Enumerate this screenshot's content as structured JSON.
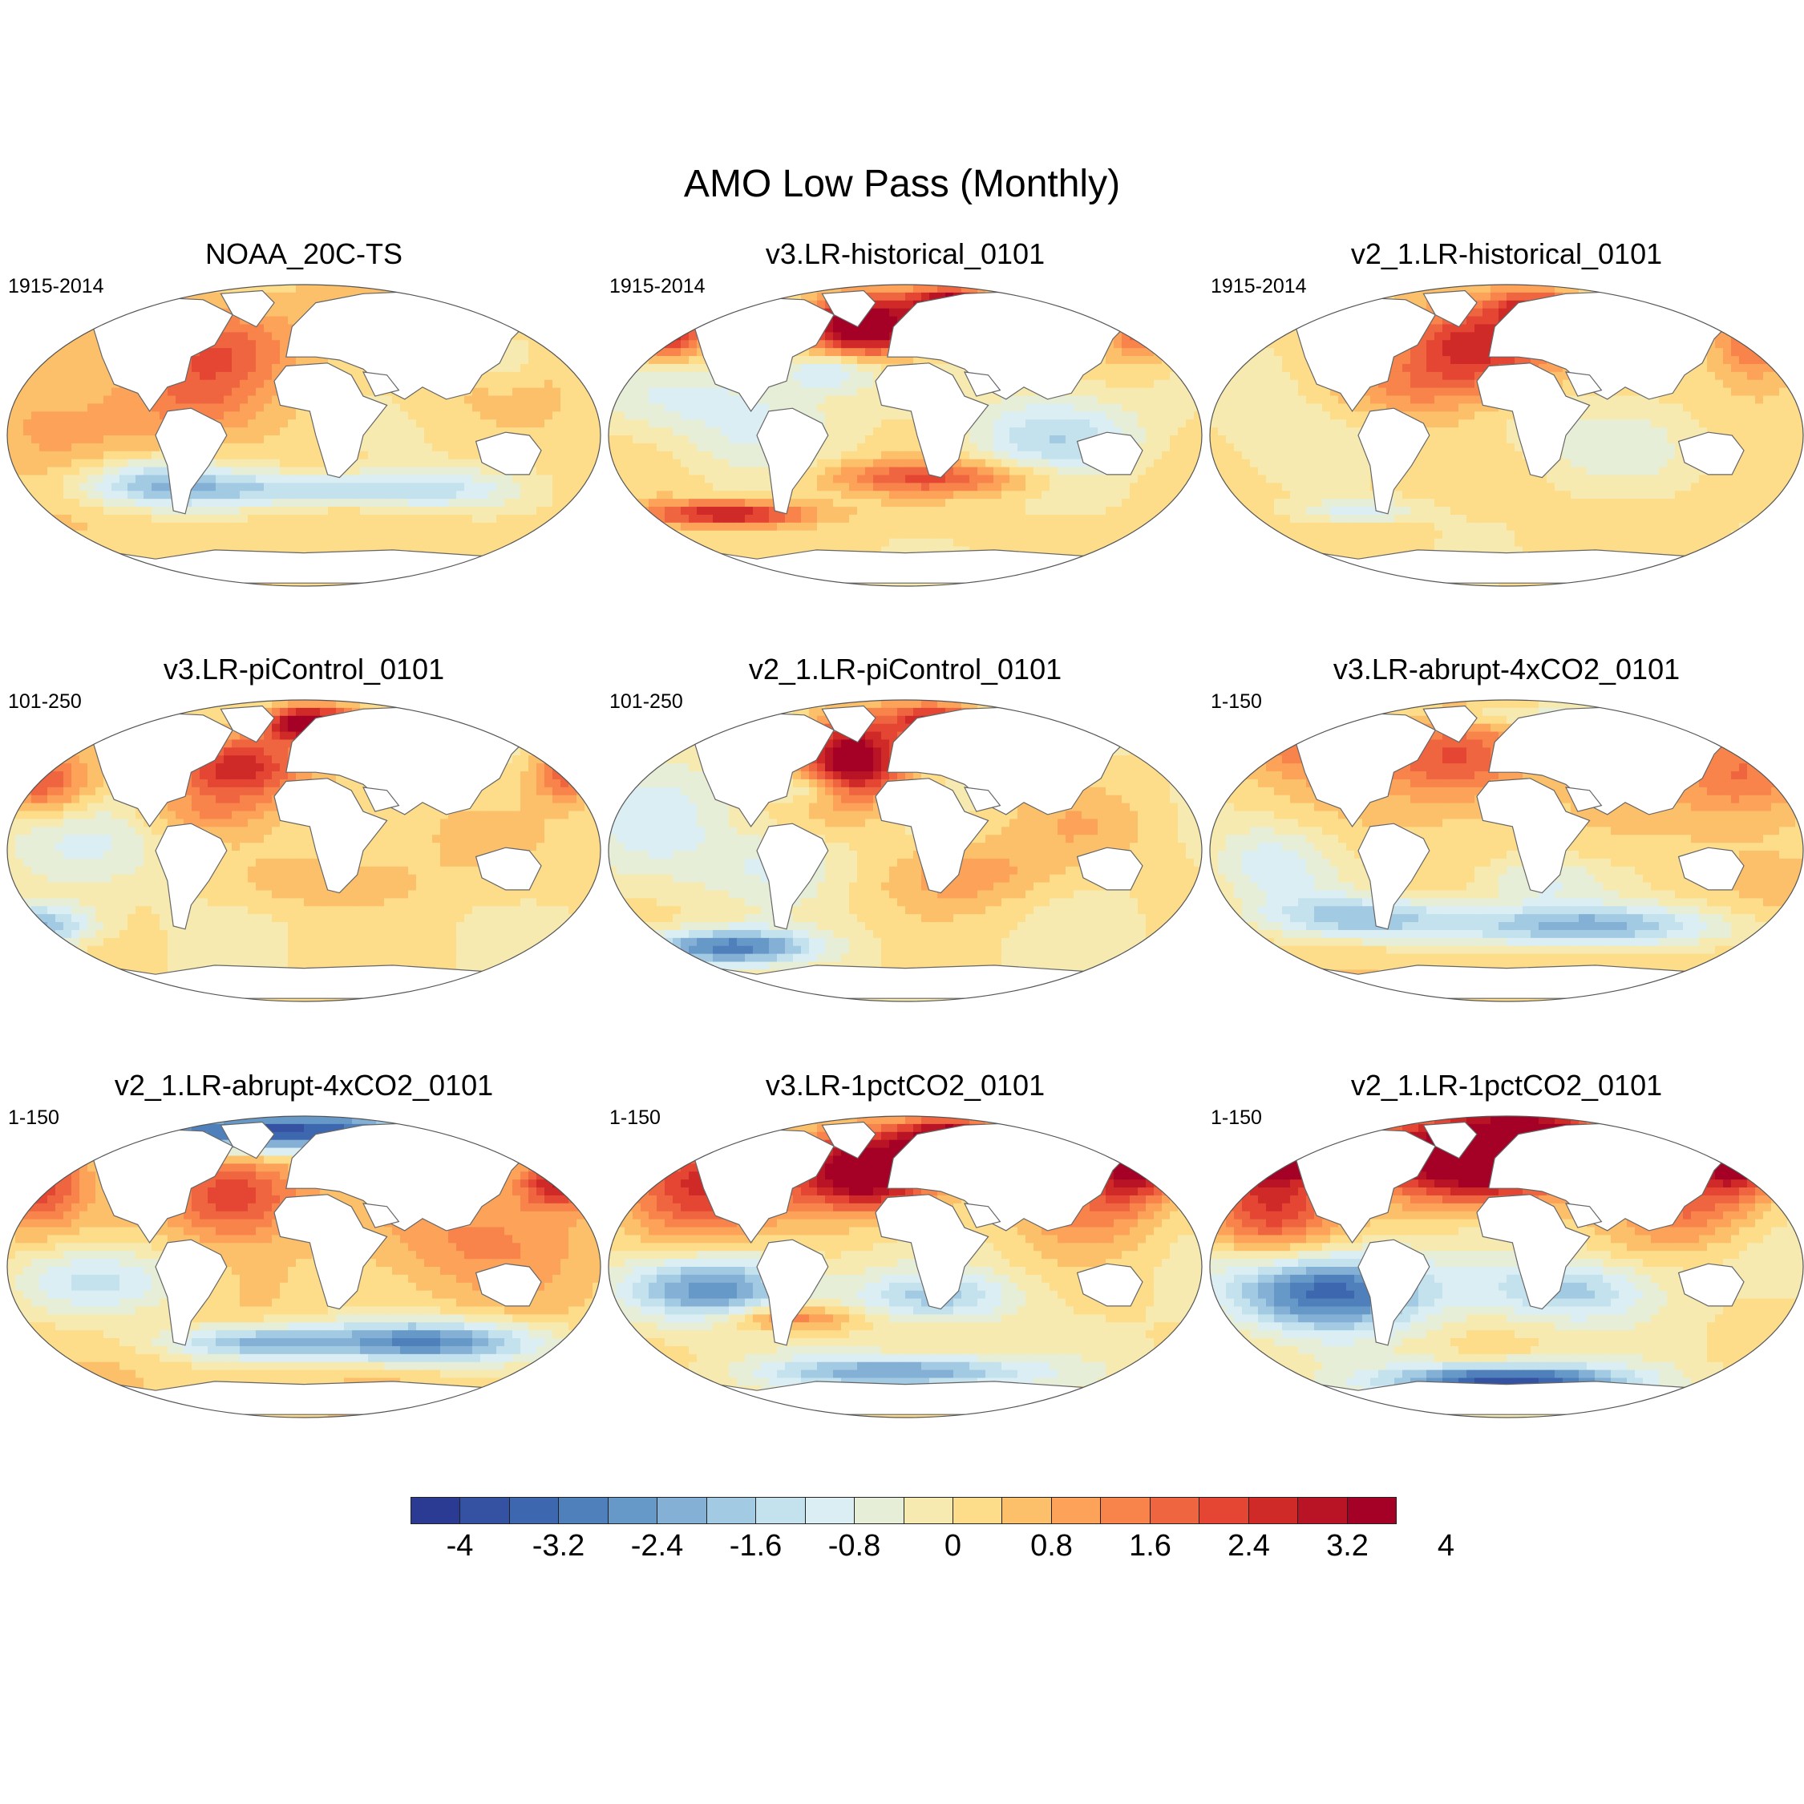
{
  "chart_data": {
    "type": "heatmap",
    "title": "AMO Low Pass (Monthly)",
    "projection": "Robinson (global map)",
    "colorbar": {
      "levels": [
        -4.4,
        -4.0,
        -3.6,
        -3.2,
        -2.8,
        -2.4,
        -2.0,
        -1.6,
        -1.2,
        -0.8,
        -0.4,
        0,
        0.4,
        0.8,
        1.2,
        1.6,
        2.0,
        2.4,
        2.8,
        3.2,
        3.6,
        4.0,
        4.4
      ],
      "colors": [
        "#2b3a92",
        "#3551a1",
        "#3d67ae",
        "#4f80bb",
        "#6699c8",
        "#84b0d6",
        "#a3cae3",
        "#c3e2ed",
        "#daeef3",
        "#e7eed8",
        "#f6eab0",
        "#fddc8a",
        "#fdc06a",
        "#fca259",
        "#f8834b",
        "#ef6540",
        "#e44633",
        "#cf2a27",
        "#b91425",
        "#a50026"
      ],
      "tick_labels": [
        "-4",
        "-3.2",
        "-2.4",
        "-1.6",
        "-0.8",
        "0",
        "0.8",
        "1.6",
        "2.4",
        "3.2",
        "4"
      ]
    },
    "panels": [
      {
        "title": "NOAA_20C-TS",
        "period": "1915-2014",
        "base": 0.3,
        "blobs": [
          [
            0.36,
            0.2,
            0.09,
            0.1,
            1.5
          ],
          [
            0.31,
            0.38,
            0.08,
            0.1,
            0.9
          ],
          [
            0.24,
            0.66,
            0.1,
            0.06,
            -2.0
          ],
          [
            0.5,
            0.68,
            0.16,
            0.04,
            -1.6
          ],
          [
            0.72,
            0.68,
            0.1,
            0.05,
            -1.1
          ],
          [
            0.1,
            0.45,
            0.1,
            0.14,
            0.7
          ],
          [
            0.84,
            0.25,
            0.04,
            0.06,
            -0.7
          ],
          [
            0.65,
            0.55,
            0.08,
            0.1,
            -0.4
          ]
        ]
      },
      {
        "title": "v3.LR-historical_0101",
        "period": "1915-2014",
        "base": 0.1,
        "blobs": [
          [
            0.43,
            0.14,
            0.07,
            0.07,
            4.2
          ],
          [
            0.58,
            0.07,
            0.05,
            0.04,
            3.8
          ],
          [
            0.1,
            0.16,
            0.05,
            0.07,
            2.8
          ],
          [
            0.9,
            0.12,
            0.04,
            0.08,
            2.2
          ],
          [
            0.37,
            0.28,
            0.06,
            0.05,
            -1.4
          ],
          [
            0.55,
            0.64,
            0.14,
            0.04,
            1.8
          ],
          [
            0.2,
            0.76,
            0.1,
            0.03,
            2.8
          ],
          [
            0.75,
            0.5,
            0.1,
            0.1,
            -1.6
          ],
          [
            0.25,
            0.45,
            0.1,
            0.12,
            -0.9
          ],
          [
            0.1,
            0.35,
            0.1,
            0.1,
            -0.7
          ]
        ]
      },
      {
        "title": "v2_1.LR-historical_0101",
        "period": "1915-2014",
        "base": 0.15,
        "blobs": [
          [
            0.45,
            0.2,
            0.09,
            0.1,
            2.8
          ],
          [
            0.55,
            0.08,
            0.05,
            0.04,
            2.2
          ],
          [
            0.92,
            0.18,
            0.05,
            0.1,
            1.8
          ],
          [
            0.32,
            0.35,
            0.1,
            0.08,
            1.0
          ],
          [
            0.1,
            0.4,
            0.12,
            0.15,
            -0.5
          ],
          [
            0.25,
            0.75,
            0.07,
            0.03,
            -1.2
          ],
          [
            0.7,
            0.55,
            0.1,
            0.1,
            -0.6
          ],
          [
            0.52,
            0.45,
            0.1,
            0.08,
            -0.4
          ]
        ]
      },
      {
        "title": "v3.LR-piControl_0101",
        "period": "101-250",
        "base": 0.05,
        "blobs": [
          [
            0.51,
            0.08,
            0.05,
            0.04,
            4.0
          ],
          [
            0.39,
            0.22,
            0.08,
            0.08,
            2.8
          ],
          [
            0.06,
            0.28,
            0.06,
            0.08,
            2.0
          ],
          [
            0.94,
            0.24,
            0.04,
            0.07,
            1.8
          ],
          [
            0.32,
            0.38,
            0.08,
            0.06,
            0.9
          ],
          [
            0.12,
            0.45,
            0.12,
            0.12,
            -0.8
          ],
          [
            0.06,
            0.75,
            0.06,
            0.05,
            -2.2
          ],
          [
            0.55,
            0.6,
            0.1,
            0.06,
            0.8
          ],
          [
            0.75,
            0.45,
            0.1,
            0.1,
            0.4
          ]
        ]
      },
      {
        "title": "v2_1.LR-piControl_0101",
        "period": "101-250",
        "base": 0.0,
        "blobs": [
          [
            0.41,
            0.2,
            0.06,
            0.1,
            4.0
          ],
          [
            0.55,
            0.07,
            0.05,
            0.04,
            2.6
          ],
          [
            0.35,
            0.29,
            0.05,
            0.04,
            -1.3
          ],
          [
            0.2,
            0.82,
            0.1,
            0.04,
            -3.0
          ],
          [
            0.08,
            0.4,
            0.1,
            0.15,
            -0.9
          ],
          [
            0.6,
            0.58,
            0.1,
            0.08,
            1.0
          ],
          [
            0.8,
            0.42,
            0.1,
            0.1,
            0.6
          ],
          [
            0.28,
            0.55,
            0.08,
            0.08,
            -0.8
          ]
        ]
      },
      {
        "title": "v3.LR-abrupt-4xCO2_0101",
        "period": "1-150",
        "base": 0.3,
        "blobs": [
          [
            0.42,
            0.2,
            0.08,
            0.1,
            1.8
          ],
          [
            0.18,
            0.15,
            0.1,
            0.08,
            1.2
          ],
          [
            0.9,
            0.25,
            0.08,
            0.1,
            1.5
          ],
          [
            0.5,
            0.05,
            0.15,
            0.03,
            -1.0
          ],
          [
            0.62,
            0.75,
            0.18,
            0.05,
            -2.4
          ],
          [
            0.25,
            0.72,
            0.12,
            0.05,
            -1.8
          ],
          [
            0.1,
            0.55,
            0.08,
            0.1,
            -1.4
          ],
          [
            0.55,
            0.6,
            0.08,
            0.06,
            -1.2
          ]
        ]
      },
      {
        "title": "v2_1.LR-abrupt-4xCO2_0101",
        "period": "1-150",
        "base": 0.3,
        "blobs": [
          [
            0.45,
            0.05,
            0.2,
            0.05,
            -4.2
          ],
          [
            0.38,
            0.26,
            0.08,
            0.1,
            2.2
          ],
          [
            0.93,
            0.22,
            0.05,
            0.06,
            2.6
          ],
          [
            0.05,
            0.22,
            0.05,
            0.1,
            2.0
          ],
          [
            0.7,
            0.75,
            0.14,
            0.05,
            -3.2
          ],
          [
            0.4,
            0.75,
            0.1,
            0.04,
            -2.0
          ],
          [
            0.15,
            0.55,
            0.12,
            0.08,
            -1.4
          ],
          [
            0.8,
            0.4,
            0.12,
            0.12,
            1.0
          ]
        ]
      },
      {
        "title": "v3.LR-1pctCO2_0101",
        "period": "1-150",
        "base": 0.0,
        "blobs": [
          [
            0.43,
            0.18,
            0.08,
            0.09,
            4.3
          ],
          [
            0.58,
            0.08,
            0.06,
            0.05,
            4.0
          ],
          [
            0.88,
            0.14,
            0.05,
            0.09,
            4.0
          ],
          [
            0.18,
            0.22,
            0.1,
            0.1,
            2.4
          ],
          [
            0.18,
            0.57,
            0.1,
            0.08,
            -2.8
          ],
          [
            0.55,
            0.6,
            0.1,
            0.06,
            -1.6
          ],
          [
            0.5,
            0.85,
            0.15,
            0.04,
            -2.6
          ],
          [
            0.3,
            0.67,
            0.08,
            0.03,
            1.8
          ],
          [
            0.8,
            0.3,
            0.08,
            0.1,
            1.4
          ],
          [
            0.12,
            0.4,
            0.08,
            0.1,
            0.8
          ]
        ]
      },
      {
        "title": "v2_1.LR-1pctCO2_0101",
        "period": "1-150",
        "base": 0.0,
        "blobs": [
          [
            0.45,
            0.14,
            0.12,
            0.1,
            4.6
          ],
          [
            0.88,
            0.12,
            0.06,
            0.09,
            4.6
          ],
          [
            0.15,
            0.12,
            0.1,
            0.06,
            4.4
          ],
          [
            0.56,
            0.08,
            0.08,
            0.05,
            4.2
          ],
          [
            0.2,
            0.58,
            0.12,
            0.09,
            -3.5
          ],
          [
            0.5,
            0.88,
            0.14,
            0.04,
            -4.0
          ],
          [
            0.6,
            0.58,
            0.1,
            0.07,
            -1.8
          ],
          [
            0.1,
            0.3,
            0.08,
            0.12,
            2.4
          ],
          [
            0.8,
            0.32,
            0.08,
            0.08,
            1.4
          ]
        ]
      }
    ]
  }
}
